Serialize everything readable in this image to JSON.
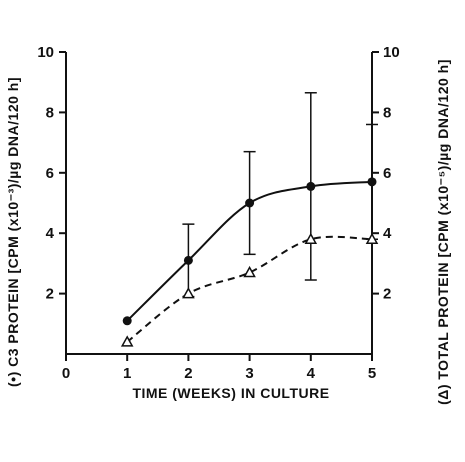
{
  "chart_data": {
    "type": "line",
    "xlabel": "TIME (WEEKS) IN CULTURE",
    "ylabel_left": "(•) C3 PROTEIN [CPM (x10⁻³)/µg DNA/120 h]",
    "ylabel_right": "(Δ) TOTAL PROTEIN [CPM (x10⁻⁵)/µg DNA/120 h]",
    "xlim": [
      0,
      5
    ],
    "ylim_left": [
      0,
      10
    ],
    "ylim_right": [
      0,
      10
    ],
    "x_ticks": [
      0,
      1,
      2,
      3,
      4,
      5
    ],
    "y_ticks_left": [
      2,
      4,
      6,
      8,
      10
    ],
    "y_ticks_right": [
      2,
      4,
      6,
      8,
      10
    ],
    "series": [
      {
        "marker": "filled-circle",
        "line": "solid",
        "axis": "left",
        "x": [
          1,
          2,
          3,
          4,
          5
        ],
        "values": [
          1.1,
          3.1,
          5.0,
          5.55,
          5.7
        ],
        "error": [
          null,
          1.2,
          1.7,
          3.1,
          1.9
        ]
      },
      {
        "marker": "open-triangle",
        "line": "dashed",
        "axis": "right",
        "x": [
          1,
          2,
          3,
          4,
          5
        ],
        "values": [
          0.4,
          2.0,
          2.7,
          3.8,
          3.8
        ]
      }
    ],
    "colors": {
      "ink": "#111111",
      "background": "#ffffff"
    }
  }
}
